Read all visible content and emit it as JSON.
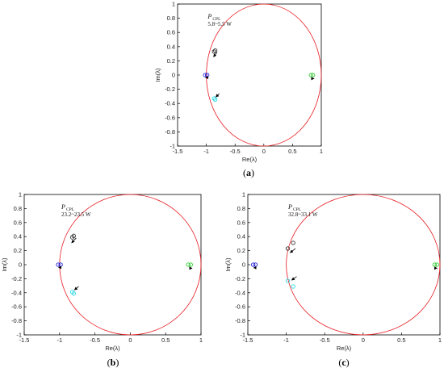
{
  "chart_data": [
    {
      "type": "scatter",
      "panel_label": "(a)",
      "xlabel": "Re(λ)",
      "ylabel": "Im(λ)",
      "xlim": [
        -1.5,
        1
      ],
      "ylim": [
        -1,
        1
      ],
      "xticks": [
        "-1.5",
        "-1",
        "-0.5",
        "0",
        "0.5",
        "1"
      ],
      "yticks": [
        "-1",
        "-0.8",
        "-0.6",
        "-0.4",
        "-0.2",
        "0",
        "0.2",
        "0.4",
        "0.6",
        "0.8",
        "1"
      ],
      "grid": false,
      "unit_circle_color": "#e8191f",
      "annotation": {
        "symbol": "P",
        "subscript": "CPL",
        "text": "5.8~5.5 W"
      },
      "series": [
        {
          "color": "#1f1fd6",
          "points": [
            [
              -1.02,
              0
            ],
            [
              -0.985,
              0
            ]
          ]
        },
        {
          "color": "#333333",
          "points": [
            [
              -0.865,
              0.33
            ],
            [
              -0.845,
              0.345
            ]
          ]
        },
        {
          "color": "#28d9e6",
          "points": [
            [
              -0.865,
              -0.33
            ],
            [
              -0.845,
              -0.345
            ]
          ]
        },
        {
          "color": "#33cc33",
          "points": [
            [
              0.82,
              0
            ],
            [
              0.855,
              0
            ]
          ]
        }
      ],
      "arrows": [
        {
          "from": [
            -0.815,
            0.32
          ],
          "to": [
            -0.875,
            0.255
          ]
        },
        {
          "from": [
            -0.99,
            -0.035
          ],
          "to": [
            -1.015,
            -0.035
          ]
        },
        {
          "from": [
            -0.775,
            -0.26
          ],
          "to": [
            -0.835,
            -0.31
          ]
        },
        {
          "from": [
            0.835,
            -0.05
          ],
          "to": [
            0.875,
            -0.05
          ]
        }
      ]
    },
    {
      "type": "scatter",
      "panel_label": "(b)",
      "xlabel": "Re(λ)",
      "ylabel": "Im(λ)",
      "xlim": [
        -1.5,
        1
      ],
      "ylim": [
        -1,
        1
      ],
      "xticks": [
        "-1.5",
        "-1",
        "-0.5",
        "0",
        "0.5",
        "1"
      ],
      "yticks": [
        "-1",
        "-0.8",
        "-0.6",
        "-0.4",
        "-0.2",
        "0",
        "0.2",
        "0.4",
        "0.6",
        "0.8",
        "1"
      ],
      "grid": false,
      "unit_circle_color": "#e8191f",
      "annotation": {
        "symbol": "P",
        "subscript": "CPL",
        "text": "23.2~23.5 W"
      },
      "series": [
        {
          "color": "#1f1fd6",
          "points": [
            [
              -1.02,
              0
            ],
            [
              -0.985,
              0
            ]
          ]
        },
        {
          "color": "#333333",
          "points": [
            [
              -0.82,
              0.39
            ],
            [
              -0.8,
              0.41
            ]
          ]
        },
        {
          "color": "#28d9e6",
          "points": [
            [
              -0.82,
              -0.39
            ],
            [
              -0.8,
              -0.41
            ]
          ]
        },
        {
          "color": "#33cc33",
          "points": [
            [
              0.82,
              0
            ],
            [
              0.855,
              0
            ]
          ]
        }
      ],
      "arrows": [
        {
          "from": [
            -0.765,
            0.38
          ],
          "to": [
            -0.83,
            0.31
          ]
        },
        {
          "from": [
            -0.99,
            -0.04
          ],
          "to": [
            -1.015,
            -0.04
          ]
        },
        {
          "from": [
            -0.73,
            -0.31
          ],
          "to": [
            -0.79,
            -0.36
          ]
        },
        {
          "from": [
            0.835,
            -0.05
          ],
          "to": [
            0.875,
            -0.05
          ]
        }
      ]
    },
    {
      "type": "scatter",
      "panel_label": "(c)",
      "xlabel": "Re(λ)",
      "ylabel": "Im(λ)",
      "xlim": [
        -1.5,
        1
      ],
      "ylim": [
        -1,
        1
      ],
      "xticks": [
        "-1.5",
        "-1",
        "-0.5",
        "0",
        "0.5",
        "1"
      ],
      "yticks": [
        "-1",
        "-0.8",
        "-0.6",
        "-0.4",
        "-0.2",
        "0",
        "0.2",
        "0.4",
        "0.6",
        "0.8",
        "1"
      ],
      "grid": false,
      "unit_circle_color": "#e8191f",
      "annotation": {
        "symbol": "P",
        "subscript": "CPL",
        "text": "32.8~33.1 W"
      },
      "series": [
        {
          "color": "#1f1fd6",
          "points": [
            [
              -1.43,
              0
            ],
            [
              -1.4,
              0
            ]
          ]
        },
        {
          "color": "#333333",
          "points": [
            [
              -0.98,
              0.23
            ],
            [
              -0.91,
              0.31
            ]
          ]
        },
        {
          "color": "#28d9e6",
          "points": [
            [
              -0.98,
              -0.23
            ],
            [
              -0.91,
              -0.31
            ]
          ]
        },
        {
          "color": "#33cc33",
          "points": [
            [
              0.93,
              0
            ],
            [
              0.96,
              0
            ]
          ]
        }
      ],
      "arrows": [
        {
          "from": [
            -0.88,
            0.23
          ],
          "to": [
            -0.95,
            0.17
          ]
        },
        {
          "from": [
            -1.395,
            -0.045
          ],
          "to": [
            -1.425,
            -0.045
          ]
        },
        {
          "from": [
            -0.865,
            -0.17
          ],
          "to": [
            -0.93,
            -0.22
          ]
        },
        {
          "from": [
            0.93,
            -0.05
          ],
          "to": [
            0.965,
            -0.05
          ]
        }
      ]
    }
  ]
}
